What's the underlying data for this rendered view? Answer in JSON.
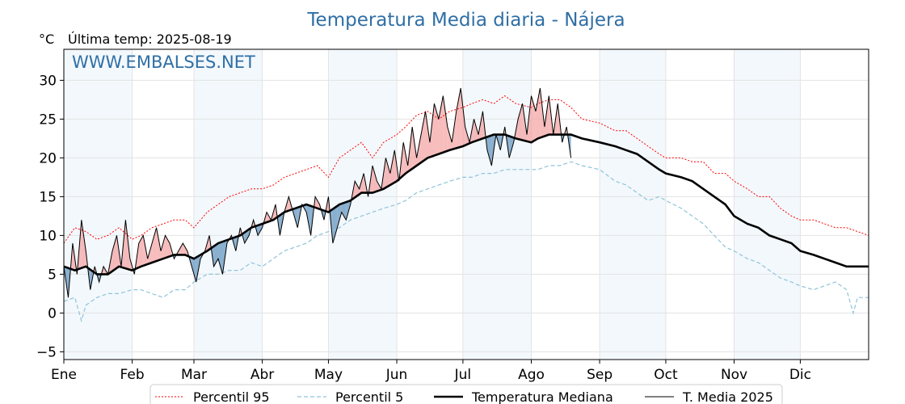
{
  "chart_data": {
    "type": "line",
    "title": "Temperatura Media diaria - Nájera",
    "unit": "°C",
    "subtitle": "Última temp: 2025-08-19",
    "watermark": "WWW.EMBALSES.NET",
    "ylim": [
      -6,
      34
    ],
    "yticks": [
      -5,
      0,
      5,
      10,
      15,
      20,
      25,
      30
    ],
    "xlim": [
      0,
      365
    ],
    "x_ticks": [
      {
        "day": 0,
        "label": "Ene"
      },
      {
        "day": 31,
        "label": "Feb"
      },
      {
        "day": 59,
        "label": "Mar"
      },
      {
        "day": 90,
        "label": "Abr"
      },
      {
        "day": 120,
        "label": "May"
      },
      {
        "day": 151,
        "label": "Jun"
      },
      {
        "day": 181,
        "label": "Jul"
      },
      {
        "day": 212,
        "label": "Ago"
      },
      {
        "day": 243,
        "label": "Sep"
      },
      {
        "day": 273,
        "label": "Oct"
      },
      {
        "day": 304,
        "label": "Nov"
      },
      {
        "day": 334,
        "label": "Dic"
      }
    ],
    "shaded_month_bands": [
      [
        0,
        31
      ],
      [
        59,
        90
      ],
      [
        120,
        151
      ],
      [
        181,
        212
      ],
      [
        243,
        273
      ],
      [
        304,
        334
      ]
    ],
    "grid": true,
    "legend_position": "bottom",
    "series": [
      {
        "name": "Percentil 95",
        "color": "#ff0000",
        "style": "dotted",
        "x": [
          0,
          5,
          10,
          15,
          20,
          25,
          31,
          35,
          40,
          45,
          50,
          55,
          59,
          65,
          70,
          75,
          80,
          85,
          90,
          95,
          100,
          105,
          110,
          115,
          120,
          125,
          130,
          135,
          140,
          145,
          151,
          155,
          160,
          165,
          170,
          175,
          181,
          185,
          190,
          195,
          200,
          205,
          212,
          215,
          220,
          225,
          230,
          235,
          243,
          250,
          255,
          260,
          265,
          270,
          273,
          280,
          285,
          290,
          295,
          300,
          304,
          310,
          315,
          320,
          325,
          330,
          334,
          340,
          345,
          350,
          355,
          360,
          365
        ],
        "values": [
          9,
          11,
          10.5,
          9.5,
          10,
          11,
          9.5,
          10,
          11,
          11.5,
          12,
          12,
          11,
          13,
          14,
          15,
          15.5,
          16,
          16,
          16.5,
          17.5,
          18,
          18.5,
          19,
          17.5,
          20,
          21,
          22,
          20,
          22,
          23,
          24,
          25.5,
          26,
          25,
          26,
          26.5,
          27,
          27.5,
          27,
          28,
          27,
          26.5,
          27,
          27.5,
          27.5,
          26.5,
          25,
          24.5,
          23.5,
          23.5,
          22.5,
          21.5,
          20.5,
          20,
          20,
          19.5,
          19.5,
          18,
          18,
          17,
          16,
          15,
          15,
          13.5,
          12.5,
          12,
          12,
          11.5,
          11,
          11,
          10.5,
          10
        ]
      },
      {
        "name": "Percentil 5",
        "color": "#8fc4d9",
        "style": "dashed",
        "x": [
          0,
          5,
          8,
          10,
          15,
          20,
          25,
          31,
          35,
          40,
          45,
          50,
          55,
          59,
          65,
          70,
          75,
          80,
          85,
          90,
          95,
          100,
          105,
          110,
          115,
          120,
          125,
          130,
          135,
          140,
          145,
          151,
          155,
          160,
          165,
          170,
          175,
          181,
          185,
          190,
          195,
          200,
          205,
          212,
          215,
          220,
          225,
          230,
          235,
          243,
          250,
          255,
          260,
          265,
          270,
          273,
          280,
          285,
          290,
          295,
          300,
          304,
          310,
          315,
          320,
          325,
          330,
          334,
          340,
          345,
          350,
          355,
          358,
          360,
          365
        ],
        "values": [
          1.5,
          2,
          -1,
          1,
          2,
          2.5,
          2.5,
          3,
          3,
          2.5,
          2,
          3,
          3,
          4,
          5,
          5,
          5.5,
          5.5,
          6.5,
          6,
          7,
          8,
          8.5,
          9,
          10,
          10.5,
          11,
          12,
          12.5,
          13,
          13.5,
          14,
          14.5,
          15.5,
          16,
          16.5,
          17,
          17.5,
          17.5,
          18,
          18,
          18.5,
          18.5,
          18.5,
          18.5,
          19,
          19,
          19.5,
          19,
          18.5,
          17,
          16.5,
          15.5,
          14.5,
          15,
          14.5,
          13.5,
          12.5,
          11.5,
          10,
          8.5,
          8,
          7,
          6.5,
          5.5,
          4.5,
          4,
          3.5,
          3,
          3.5,
          4,
          3,
          0,
          2,
          2
        ]
      },
      {
        "name": "Temperatura Mediana",
        "color": "#000000",
        "style": "solid",
        "x": [
          0,
          5,
          10,
          15,
          20,
          25,
          31,
          35,
          40,
          45,
          50,
          55,
          59,
          65,
          70,
          75,
          80,
          85,
          90,
          95,
          100,
          105,
          110,
          115,
          120,
          125,
          130,
          135,
          140,
          145,
          151,
          155,
          160,
          165,
          170,
          175,
          181,
          185,
          190,
          195,
          200,
          205,
          212,
          215,
          220,
          225,
          230,
          235,
          243,
          250,
          255,
          260,
          265,
          270,
          273,
          280,
          285,
          290,
          295,
          300,
          304,
          310,
          315,
          320,
          325,
          330,
          334,
          340,
          345,
          350,
          355,
          360,
          365
        ],
        "values": [
          6,
          5.5,
          6,
          5,
          5,
          6,
          5.5,
          6,
          6.5,
          7,
          7.5,
          7.5,
          7,
          8,
          9,
          9.5,
          10,
          11,
          11.5,
          12,
          13,
          13.5,
          14,
          13.5,
          13,
          14,
          14.5,
          15.5,
          15.5,
          16,
          17,
          18,
          19,
          20,
          20.5,
          21,
          21.5,
          22,
          22.5,
          23,
          23,
          22.5,
          22,
          22.5,
          23,
          23,
          23,
          22.5,
          22,
          21.5,
          21,
          20.5,
          19.5,
          18.5,
          18,
          17.5,
          17,
          16,
          15,
          14,
          12.5,
          11.5,
          11,
          10,
          9.5,
          9,
          8,
          7.5,
          7,
          6.5,
          6,
          6,
          6
        ]
      },
      {
        "name": "T. Media 2025",
        "color": "#000000",
        "style": "solid-thin",
        "x": [
          0,
          2,
          4,
          6,
          8,
          10,
          12,
          14,
          16,
          18,
          20,
          22,
          24,
          26,
          28,
          30,
          32,
          34,
          36,
          38,
          40,
          42,
          44,
          46,
          48,
          50,
          52,
          54,
          56,
          58,
          60,
          62,
          64,
          66,
          68,
          70,
          72,
          74,
          76,
          78,
          80,
          82,
          84,
          86,
          88,
          90,
          92,
          94,
          96,
          98,
          100,
          102,
          104,
          106,
          108,
          110,
          112,
          114,
          116,
          118,
          120,
          122,
          124,
          126,
          128,
          130,
          132,
          134,
          136,
          138,
          140,
          142,
          144,
          146,
          148,
          150,
          152,
          154,
          156,
          158,
          160,
          162,
          164,
          166,
          168,
          170,
          172,
          174,
          176,
          178,
          180,
          182,
          184,
          186,
          188,
          190,
          192,
          194,
          196,
          198,
          200,
          202,
          204,
          206,
          208,
          210,
          212,
          214,
          216,
          218,
          220,
          222,
          224,
          226,
          228,
          230
        ],
        "values": [
          6,
          2,
          9,
          5,
          12,
          8,
          3,
          6,
          4,
          6,
          5,
          8,
          10,
          6,
          12,
          7,
          5,
          9,
          10,
          7,
          9,
          11,
          8,
          10,
          9,
          7,
          8,
          9,
          8,
          6,
          4,
          7,
          8,
          10,
          6,
          7,
          5,
          9,
          10,
          8,
          11,
          9,
          10,
          12,
          10,
          11,
          13,
          12,
          14,
          10,
          13,
          15,
          13,
          11,
          14,
          13,
          10,
          15,
          14,
          12,
          15,
          9,
          11,
          13,
          12,
          14,
          17,
          16,
          18,
          15,
          19,
          17,
          16,
          20,
          18,
          21,
          17,
          22,
          19,
          24,
          20,
          23,
          26,
          22,
          27,
          25,
          28,
          24,
          22,
          26,
          29,
          24,
          22,
          25,
          23,
          26,
          21,
          19,
          23,
          21,
          24,
          20,
          22,
          25,
          27,
          23,
          28,
          26,
          29,
          24,
          28,
          23,
          27,
          22,
          24,
          20
        ]
      }
    ]
  }
}
